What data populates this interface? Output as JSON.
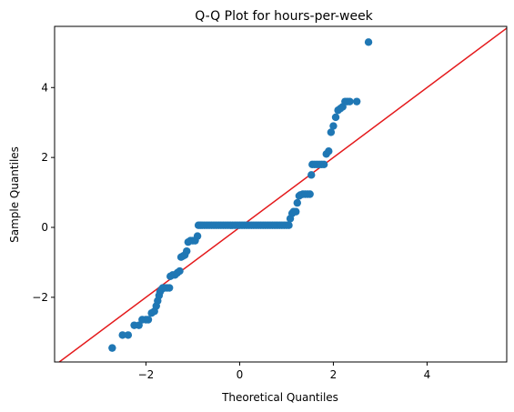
{
  "chart_data": {
    "type": "scatter",
    "title": "Q-Q Plot for hours-per-week",
    "xlabel": "Theoretical Quantiles",
    "ylabel": "Sample Quantiles",
    "xlim": [
      -3.95,
      5.7
    ],
    "ylim": [
      -3.85,
      5.75
    ],
    "xticks": [
      -2,
      0,
      2,
      4
    ],
    "yticks": [
      -2,
      0,
      2,
      4
    ],
    "xtick_labels": [
      "−2",
      "0",
      "2",
      "4"
    ],
    "ytick_labels": [
      "−2",
      "0",
      "2",
      "4"
    ],
    "grid": false,
    "point_color": "#1f77b4",
    "line_color": "#e41a1c",
    "reference_line": {
      "slope": 1,
      "intercept": 0
    },
    "points": [
      [
        -2.72,
        -3.45
      ],
      [
        -2.5,
        -3.08
      ],
      [
        -2.38,
        -3.08
      ],
      [
        -2.25,
        -2.8
      ],
      [
        -2.15,
        -2.8
      ],
      [
        -2.08,
        -2.64
      ],
      [
        -2.0,
        -2.64
      ],
      [
        -1.95,
        -2.64
      ],
      [
        -1.88,
        -2.45
      ],
      [
        -1.82,
        -2.4
      ],
      [
        -1.78,
        -2.25
      ],
      [
        -1.75,
        -2.1
      ],
      [
        -1.72,
        -1.95
      ],
      [
        -1.7,
        -1.85
      ],
      [
        -1.67,
        -1.78
      ],
      [
        -1.64,
        -1.73
      ],
      [
        -1.6,
        -1.73
      ],
      [
        -1.55,
        -1.73
      ],
      [
        -1.5,
        -1.73
      ],
      [
        -1.48,
        -1.4
      ],
      [
        -1.43,
        -1.36
      ],
      [
        -1.38,
        -1.36
      ],
      [
        -1.33,
        -1.3
      ],
      [
        -1.28,
        -1.25
      ],
      [
        -1.25,
        -0.85
      ],
      [
        -1.21,
        -0.82
      ],
      [
        -1.17,
        -0.79
      ],
      [
        -1.13,
        -0.68
      ],
      [
        -1.1,
        -0.42
      ],
      [
        -1.05,
        -0.38
      ],
      [
        -1.0,
        -0.38
      ],
      [
        -0.95,
        -0.38
      ],
      [
        -0.9,
        -0.25
      ],
      [
        -0.88,
        0.06
      ],
      [
        -0.84,
        0.06
      ],
      [
        -0.8,
        0.06
      ],
      [
        -0.75,
        0.06
      ],
      [
        -0.7,
        0.06
      ],
      [
        -0.65,
        0.06
      ],
      [
        -0.6,
        0.06
      ],
      [
        -0.55,
        0.06
      ],
      [
        -0.5,
        0.06
      ],
      [
        -0.45,
        0.06
      ],
      [
        -0.4,
        0.06
      ],
      [
        -0.35,
        0.06
      ],
      [
        -0.3,
        0.06
      ],
      [
        -0.25,
        0.06
      ],
      [
        -0.2,
        0.06
      ],
      [
        -0.15,
        0.06
      ],
      [
        -0.1,
        0.06
      ],
      [
        -0.05,
        0.06
      ],
      [
        0.0,
        0.06
      ],
      [
        0.05,
        0.06
      ],
      [
        0.1,
        0.06
      ],
      [
        0.15,
        0.06
      ],
      [
        0.2,
        0.06
      ],
      [
        0.25,
        0.06
      ],
      [
        0.3,
        0.06
      ],
      [
        0.35,
        0.06
      ],
      [
        0.4,
        0.06
      ],
      [
        0.45,
        0.06
      ],
      [
        0.5,
        0.06
      ],
      [
        0.55,
        0.06
      ],
      [
        0.6,
        0.06
      ],
      [
        0.65,
        0.06
      ],
      [
        0.7,
        0.06
      ],
      [
        0.75,
        0.06
      ],
      [
        0.8,
        0.06
      ],
      [
        0.85,
        0.06
      ],
      [
        0.9,
        0.06
      ],
      [
        0.95,
        0.06
      ],
      [
        1.0,
        0.06
      ],
      [
        1.05,
        0.06
      ],
      [
        1.08,
        0.25
      ],
      [
        1.12,
        0.4
      ],
      [
        1.15,
        0.45
      ],
      [
        1.2,
        0.45
      ],
      [
        1.23,
        0.7
      ],
      [
        1.27,
        0.9
      ],
      [
        1.3,
        0.93
      ],
      [
        1.35,
        0.95
      ],
      [
        1.4,
        0.95
      ],
      [
        1.45,
        0.95
      ],
      [
        1.5,
        0.95
      ],
      [
        1.53,
        1.5
      ],
      [
        1.55,
        1.8
      ],
      [
        1.6,
        1.8
      ],
      [
        1.65,
        1.8
      ],
      [
        1.7,
        1.8
      ],
      [
        1.75,
        1.8
      ],
      [
        1.8,
        1.8
      ],
      [
        1.85,
        2.1
      ],
      [
        1.9,
        2.18
      ],
      [
        1.95,
        2.72
      ],
      [
        2.0,
        2.9
      ],
      [
        2.05,
        3.15
      ],
      [
        2.1,
        3.35
      ],
      [
        2.15,
        3.4
      ],
      [
        2.2,
        3.45
      ],
      [
        2.25,
        3.6
      ],
      [
        2.3,
        3.6
      ],
      [
        2.35,
        3.6
      ],
      [
        2.5,
        3.6
      ],
      [
        2.75,
        5.3
      ]
    ]
  }
}
